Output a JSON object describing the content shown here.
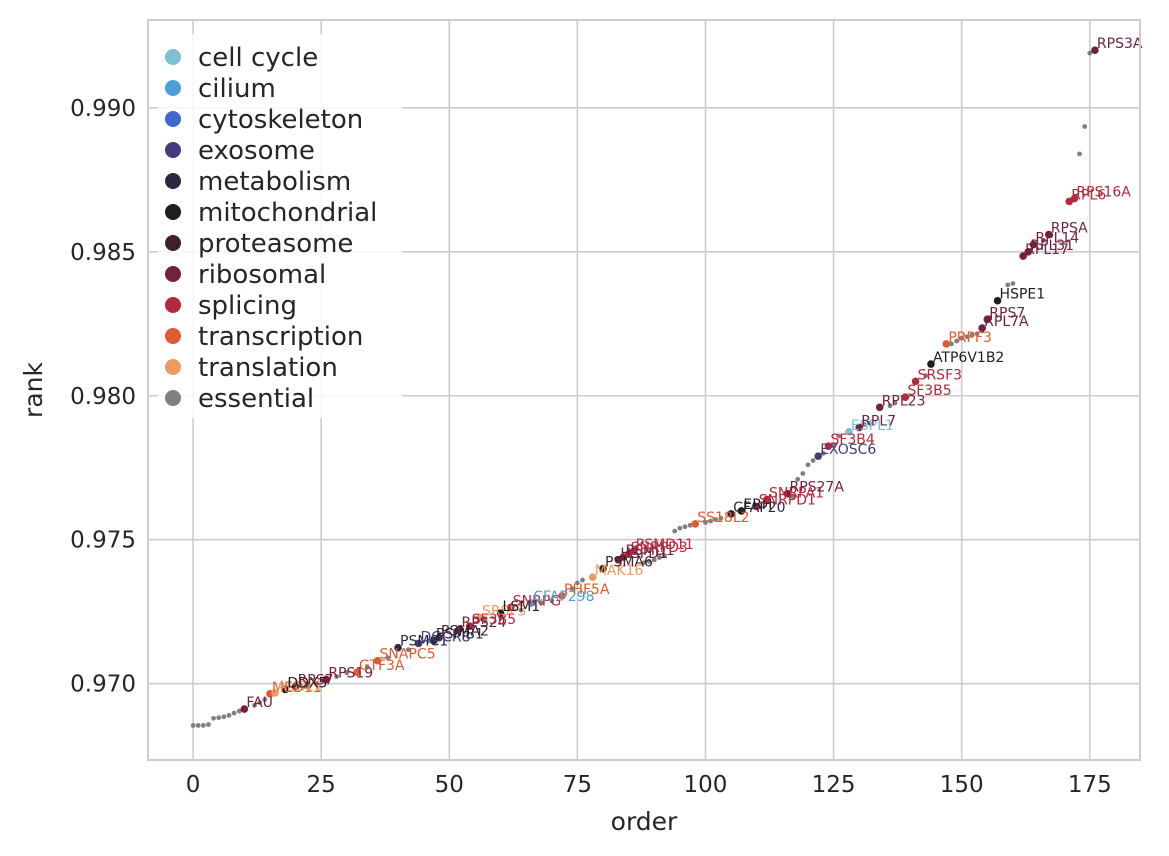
{
  "chart_data": {
    "type": "scatter",
    "title": "",
    "xlabel": "order",
    "ylabel": "rank",
    "xlim": [
      -8.8,
      184.8
    ],
    "ylim": [
      0.96735,
      0.99305
    ],
    "grid": true,
    "legend_position": "top-left",
    "x_ticks": [
      0,
      25,
      50,
      75,
      100,
      125,
      150,
      175
    ],
    "y_ticks": [
      0.97,
      0.975,
      0.98,
      0.985,
      0.99
    ],
    "y_tick_labels": [
      "0.970",
      "0.975",
      "0.980",
      "0.985",
      "0.990"
    ],
    "categories": [
      {
        "name": "cell cycle",
        "color": "#7fbfd0"
      },
      {
        "name": "cilium",
        "color": "#4c9ed6"
      },
      {
        "name": "cytoskeleton",
        "color": "#4068cc"
      },
      {
        "name": "exosome",
        "color": "#423c7f"
      },
      {
        "name": "metabolism",
        "color": "#2a2740"
      },
      {
        "name": "mitochondrial",
        "color": "#1e1e1e"
      },
      {
        "name": "proteasome",
        "color": "#3f2028"
      },
      {
        "name": "ribosomal",
        "color": "#73223d"
      },
      {
        "name": "splicing",
        "color": "#b5293e"
      },
      {
        "name": "transcription",
        "color": "#e05a2f"
      },
      {
        "name": "translation",
        "color": "#f19a5f"
      },
      {
        "name": "essential",
        "color": "#808080"
      }
    ],
    "essential_points": [
      [
        0,
        0.96855
      ],
      [
        1,
        0.96855
      ],
      [
        2,
        0.96855
      ],
      [
        3,
        0.96858
      ],
      [
        4,
        0.9688
      ],
      [
        5,
        0.96882
      ],
      [
        6,
        0.96885
      ],
      [
        7,
        0.9689
      ],
      [
        8,
        0.96898
      ],
      [
        9,
        0.96905
      ],
      [
        12,
        0.96925
      ],
      [
        13,
        0.96935
      ],
      [
        14,
        0.96945
      ],
      [
        22,
        0.9699
      ],
      [
        24,
        0.97
      ],
      [
        28,
        0.97025
      ],
      [
        30,
        0.97038
      ],
      [
        34,
        0.97058
      ],
      [
        38,
        0.9709
      ],
      [
        42,
        0.97118
      ],
      [
        46,
        0.97148
      ],
      [
        52,
        0.9719
      ],
      [
        57,
        0.97218
      ],
      [
        60,
        0.97232
      ],
      [
        64,
        0.97255
      ],
      [
        68,
        0.9728
      ],
      [
        70,
        0.97288
      ],
      [
        74,
        0.9733
      ],
      [
        75,
        0.9735
      ],
      [
        76,
        0.9736
      ],
      [
        88,
        0.9742
      ],
      [
        89,
        0.97425
      ],
      [
        90,
        0.9743
      ],
      [
        91,
        0.97438
      ],
      [
        92,
        0.97445
      ],
      [
        94,
        0.9753
      ],
      [
        95,
        0.9754
      ],
      [
        96,
        0.97545
      ],
      [
        97,
        0.9755
      ],
      [
        100,
        0.9756
      ],
      [
        101,
        0.97565
      ],
      [
        102,
        0.9757
      ],
      [
        103,
        0.97575
      ],
      [
        117,
        0.9765
      ],
      [
        118,
        0.9771
      ],
      [
        119,
        0.9773
      ],
      [
        120,
        0.9776
      ],
      [
        121,
        0.97775
      ],
      [
        123,
        0.978
      ],
      [
        125,
        0.9783
      ],
      [
        126,
        0.9786
      ],
      [
        130,
        0.9789
      ],
      [
        131,
        0.979
      ],
      [
        132,
        0.97905
      ],
      [
        136,
        0.97965
      ],
      [
        137,
        0.97975
      ],
      [
        143,
        0.9807
      ],
      [
        148,
        0.9818
      ],
      [
        149,
        0.9819
      ],
      [
        150,
        0.982
      ],
      [
        151,
        0.98205
      ],
      [
        152,
        0.9821
      ],
      [
        153,
        0.98215
      ],
      [
        154,
        0.98225
      ],
      [
        159,
        0.98385
      ],
      [
        160,
        0.9839
      ],
      [
        166,
        0.9854
      ],
      [
        173,
        0.9884
      ],
      [
        174,
        0.98935
      ],
      [
        175,
        0.9919
      ]
    ],
    "labeled_points": [
      {
        "label": "FAU",
        "category": "ribosomal",
        "x": 10,
        "y": 0.96912
      },
      {
        "label": "MED11",
        "category": "transcription",
        "x": 15,
        "y": 0.96965
      },
      {
        "label": "ALG11",
        "category": "translation",
        "x": 16,
        "y": 0.96968
      },
      {
        "label": "DDX5",
        "category": "mitochondrial",
        "x": 18,
        "y": 0.9698
      },
      {
        "label": "RPS7",
        "category": "ribosomal",
        "x": 20,
        "y": 0.9699
      },
      {
        "label": "RPS19",
        "category": "ribosomal",
        "x": 26,
        "y": 0.97015
      },
      {
        "label": "GTF3A",
        "category": "transcription",
        "x": 32,
        "y": 0.9704
      },
      {
        "label": "SNAPC5",
        "category": "transcription",
        "x": 36,
        "y": 0.9708
      },
      {
        "label": "PSMC1",
        "category": "metabolism",
        "x": 40,
        "y": 0.97125
      },
      {
        "label": "DGCR8",
        "category": "exosome",
        "x": 44,
        "y": 0.9714
      },
      {
        "label": "PSMB1",
        "category": "metabolism",
        "x": 47,
        "y": 0.9715
      },
      {
        "label": "PSMA2",
        "category": "proteasome",
        "x": 48,
        "y": 0.9716
      },
      {
        "label": "RPS24",
        "category": "ribosomal",
        "x": 52,
        "y": 0.9719
      },
      {
        "label": "SF3B5",
        "category": "splicing",
        "x": 54,
        "y": 0.972
      },
      {
        "label": "SRSF3",
        "category": "translation",
        "x": 56,
        "y": 0.9723
      },
      {
        "label": "LSM1",
        "category": "mitochondrial",
        "x": 60,
        "y": 0.97245
      },
      {
        "label": "SNRPG",
        "category": "splicing",
        "x": 62,
        "y": 0.97265
      },
      {
        "label": "CFAP298",
        "category": "cilium",
        "x": 66,
        "y": 0.9728
      },
      {
        "label": "PHF5A",
        "category": "transcription",
        "x": 72,
        "y": 0.97305
      },
      {
        "label": "MAK16",
        "category": "translation",
        "x": 78,
        "y": 0.9737
      },
      {
        "label": "PSMA6",
        "category": "proteasome",
        "x": 80,
        "y": 0.974
      },
      {
        "label": "HSPD1",
        "category": "ribosomal",
        "x": 83,
        "y": 0.9743
      },
      {
        "label": "PSMD1",
        "category": "ribosomal",
        "x": 84,
        "y": 0.9744
      },
      {
        "label": "SNRPD3",
        "category": "splicing",
        "x": 85,
        "y": 0.9745
      },
      {
        "label": "PSMD11",
        "category": "splicing",
        "x": 86,
        "y": 0.9746
      },
      {
        "label": "SS18L2",
        "category": "transcription",
        "x": 98,
        "y": 0.97555
      },
      {
        "label": "CFAP20",
        "category": "metabolism",
        "x": 105,
        "y": 0.9759
      },
      {
        "label": "ERH",
        "category": "mitochondrial",
        "x": 107,
        "y": 0.976
      },
      {
        "label": "SNRPD1",
        "category": "splicing",
        "x": 110,
        "y": 0.97615
      },
      {
        "label": "SNRPA1",
        "category": "splicing",
        "x": 112,
        "y": 0.9764
      },
      {
        "label": "RPS27A",
        "category": "ribosomal",
        "x": 116,
        "y": 0.9766
      },
      {
        "label": "EXOSC6",
        "category": "exosome",
        "x": 122,
        "y": 0.9779
      },
      {
        "label": "SF3B4",
        "category": "splicing",
        "x": 124,
        "y": 0.97825
      },
      {
        "label": "ESPL1",
        "category": "cell cycle",
        "x": 128,
        "y": 0.97875
      },
      {
        "label": "RPL7",
        "category": "ribosomal",
        "x": 130,
        "y": 0.9789
      },
      {
        "label": "RPL23",
        "category": "ribosomal",
        "x": 134,
        "y": 0.9796
      },
      {
        "label": "SF3B5",
        "category": "splicing",
        "x": 139,
        "y": 0.97995
      },
      {
        "label": "SRSF3",
        "category": "splicing",
        "x": 141,
        "y": 0.9805
      },
      {
        "label": "ATP6V1B2",
        "category": "mitochondrial",
        "x": 144,
        "y": 0.9811
      },
      {
        "label": "PRPF3",
        "category": "transcription",
        "x": 147,
        "y": 0.9818
      },
      {
        "label": "RPL7A",
        "category": "ribosomal",
        "x": 154,
        "y": 0.98235
      },
      {
        "label": "RPS7",
        "category": "ribosomal",
        "x": 155,
        "y": 0.98265
      },
      {
        "label": "HSPE1",
        "category": "mitochondrial",
        "x": 157,
        "y": 0.9833
      },
      {
        "label": "RPL17",
        "category": "ribosomal",
        "x": 162,
        "y": 0.98485
      },
      {
        "label": "RPL31",
        "category": "ribosomal",
        "x": 163,
        "y": 0.985
      },
      {
        "label": "RPL14",
        "category": "ribosomal",
        "x": 164,
        "y": 0.98525
      },
      {
        "label": "RPSA",
        "category": "ribosomal",
        "x": 167,
        "y": 0.9856
      },
      {
        "label": "RPL6",
        "category": "splicing",
        "x": 171,
        "y": 0.98675
      },
      {
        "label": "RPS16A",
        "category": "splicing",
        "x": 172,
        "y": 0.98685
      },
      {
        "label": "RPS3A",
        "category": "ribosomal",
        "x": 176,
        "y": 0.992
      }
    ]
  }
}
